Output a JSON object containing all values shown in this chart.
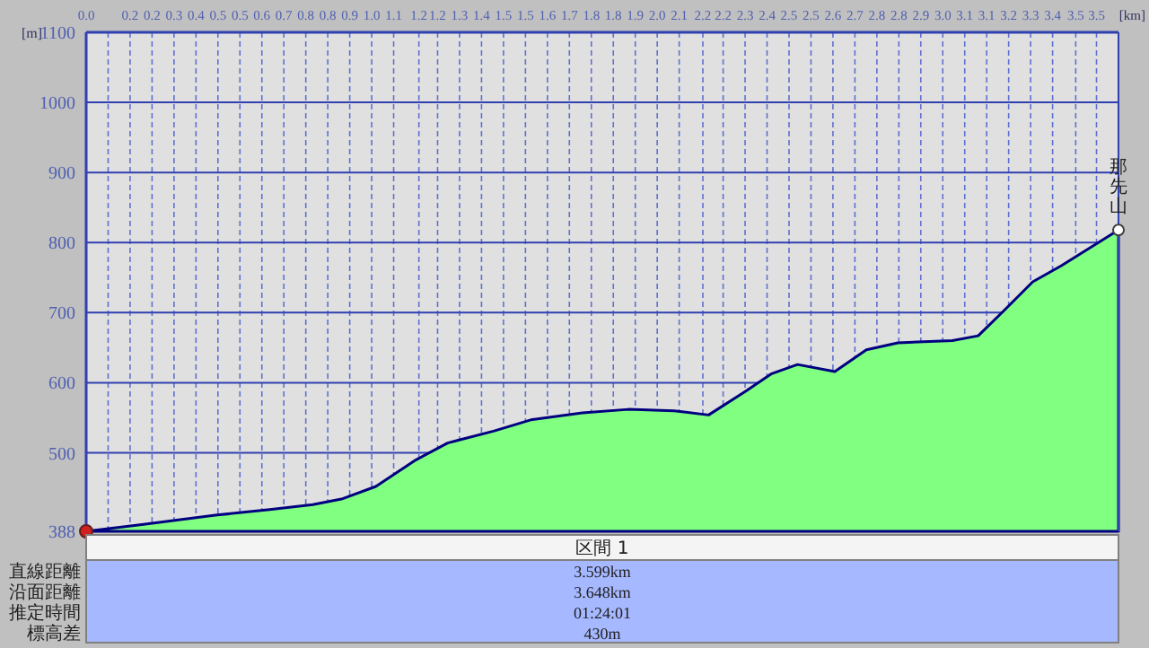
{
  "chart_data": {
    "type": "area",
    "xlabel": "[km]",
    "ylabel": "[m]",
    "x": [
      0,
      0.2,
      0.45,
      0.64,
      0.79,
      0.89,
      1.01,
      1.15,
      1.26,
      1.42,
      1.55,
      1.73,
      1.89,
      2.05,
      2.17,
      2.3,
      2.39,
      2.48,
      2.61,
      2.72,
      2.83,
      3.02,
      3.11,
      3.2,
      3.3,
      3.4,
      3.599
    ],
    "series": [
      {
        "color": "#80ff80",
        "values": [
          388,
          398,
          411,
          419,
          426,
          434,
          452,
          490,
          514,
          531,
          547,
          557,
          562,
          560,
          554,
          588,
          613,
          626,
          616,
          647,
          657,
          660,
          667,
          703,
          744,
          767,
          818
        ]
      }
    ],
    "xlim": [
      0,
      3.599
    ],
    "ylim": [
      388,
      1100
    ],
    "xticks": [
      {
        "value": 0,
        "label": "0.0"
      },
      {
        "value": 0.0766,
        "label": null
      },
      {
        "value": 0.1531,
        "label": "0.2"
      },
      {
        "value": 0.2297,
        "label": "0.2"
      },
      {
        "value": 0.3063,
        "label": "0.3"
      },
      {
        "value": 0.3829,
        "label": "0.4"
      },
      {
        "value": 0.4594,
        "label": "0.5"
      },
      {
        "value": 0.536,
        "label": "0.5"
      },
      {
        "value": 0.6126,
        "label": "0.6"
      },
      {
        "value": 0.6892,
        "label": "0.7"
      },
      {
        "value": 0.7657,
        "label": "0.8"
      },
      {
        "value": 0.8423,
        "label": "0.8"
      },
      {
        "value": 0.9189,
        "label": "0.9"
      },
      {
        "value": 0.9955,
        "label": "1.0"
      },
      {
        "value": 1.072,
        "label": "1.1"
      },
      {
        "value": 1.16,
        "label": "1.2"
      },
      {
        "value": 1.2252,
        "label": "1.2"
      },
      {
        "value": 1.3018,
        "label": "1.3"
      },
      {
        "value": 1.3783,
        "label": "1.4"
      },
      {
        "value": 1.4549,
        "label": "1.5"
      },
      {
        "value": 1.5315,
        "label": "1.5"
      },
      {
        "value": 1.6081,
        "label": "1.6"
      },
      {
        "value": 1.6846,
        "label": "1.7"
      },
      {
        "value": 1.7612,
        "label": "1.8"
      },
      {
        "value": 1.8378,
        "label": "1.8"
      },
      {
        "value": 1.9144,
        "label": "1.9"
      },
      {
        "value": 1.9909,
        "label": "2.0"
      },
      {
        "value": 2.0675,
        "label": "2.1"
      },
      {
        "value": 2.15,
        "label": "2.2"
      },
      {
        "value": 2.2207,
        "label": "2.2"
      },
      {
        "value": 2.2972,
        "label": "2.3"
      },
      {
        "value": 2.3738,
        "label": "2.4"
      },
      {
        "value": 2.4504,
        "label": "2.5"
      },
      {
        "value": 2.527,
        "label": "2.5"
      },
      {
        "value": 2.6035,
        "label": "2.6"
      },
      {
        "value": 2.6801,
        "label": "2.7"
      },
      {
        "value": 2.7567,
        "label": "2.8"
      },
      {
        "value": 2.8333,
        "label": "2.8"
      },
      {
        "value": 2.9098,
        "label": "2.9"
      },
      {
        "value": 2.9864,
        "label": "3.0"
      },
      {
        "value": 3.063,
        "label": "3.1"
      },
      {
        "value": 3.1396,
        "label": "3.1"
      },
      {
        "value": 3.2161,
        "label": "3.2"
      },
      {
        "value": 3.2927,
        "label": "3.3"
      },
      {
        "value": 3.3693,
        "label": "3.4"
      },
      {
        "value": 3.45,
        "label": "3.5"
      },
      {
        "value": 3.5224,
        "label": "3.5"
      },
      {
        "value": 3.599,
        "label": null
      }
    ],
    "yticks": [
      388,
      500,
      600,
      700,
      800,
      900,
      1000,
      1100
    ],
    "grid": true,
    "line_style": "solid",
    "annotations": [
      {
        "text": "那先山",
        "x": 3.599,
        "y": 818
      },
      "区間 1",
      "直線距離",
      "3.599km",
      "沿面距離",
      "3.648km",
      "推定時間",
      "01:24:01",
      "標高差",
      "430m"
    ]
  }
}
